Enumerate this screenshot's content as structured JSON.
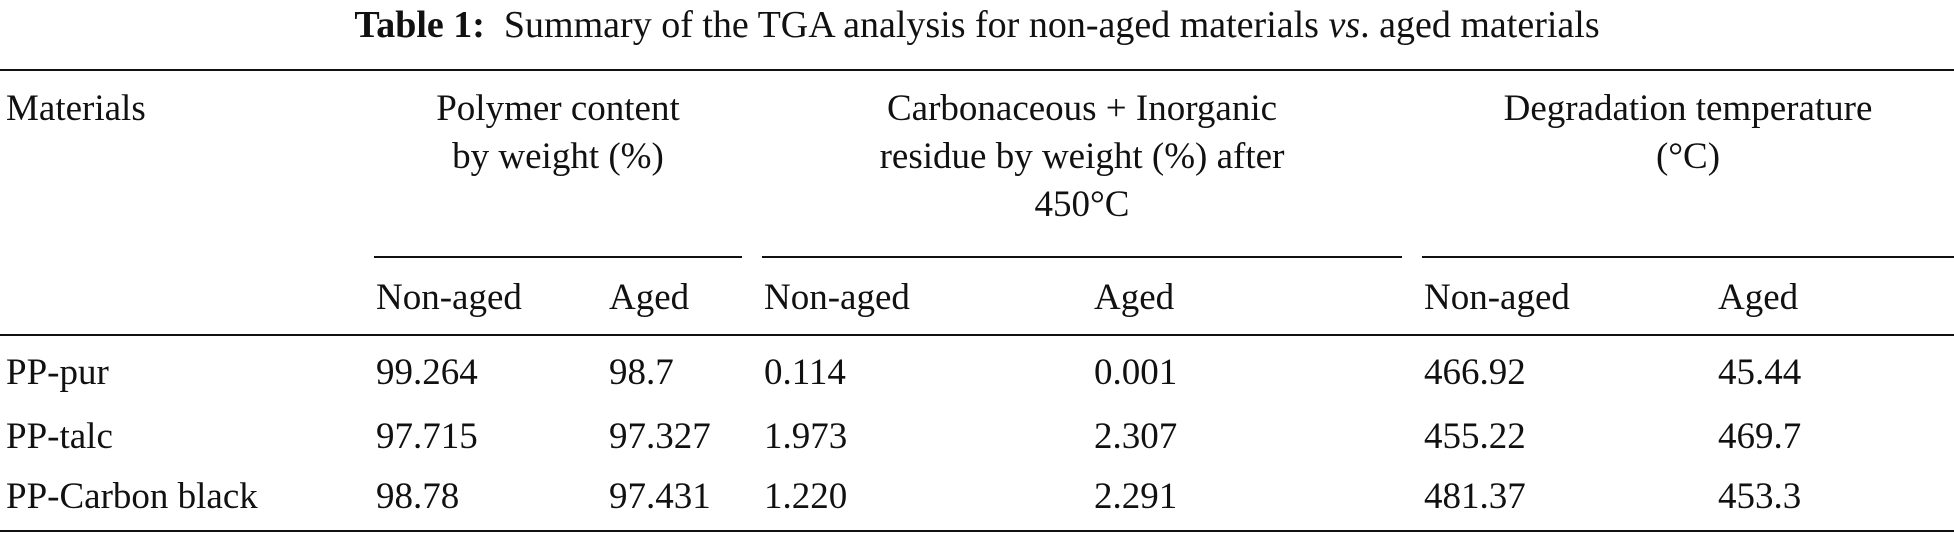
{
  "caption": {
    "label": "Table 1:",
    "text_before": "Summary of the TGA analysis for non-aged materials ",
    "text_italic": "vs",
    "text_after": ". aged materials"
  },
  "table": {
    "headers": {
      "materials": "Materials",
      "polymer_line1": "Polymer content",
      "polymer_line2": "by weight (%)",
      "residue_line1": "Carbonaceous + Inorganic",
      "residue_line2": "residue by weight (%) after",
      "residue_line3": "450°C",
      "degradation_line1": "Degradation temperature",
      "degradation_line2": "(°C)"
    },
    "subheaders": [
      "Non-aged",
      "Aged",
      "Non-aged",
      "Aged",
      "Non-aged",
      "Aged"
    ],
    "rows": [
      {
        "material": "PP-pur",
        "cells": [
          "99.264",
          "98.7",
          "0.114",
          "0.001",
          "466.92",
          "45.44"
        ]
      },
      {
        "material": "PP-talc",
        "cells": [
          "97.715",
          "97.327",
          "1.973",
          "2.307",
          "455.22",
          "469.7"
        ]
      },
      {
        "material": "PP-Carbon black",
        "cells": [
          "98.78",
          "97.431",
          "1.220",
          "2.291",
          "481.37",
          "453.3"
        ]
      }
    ]
  }
}
